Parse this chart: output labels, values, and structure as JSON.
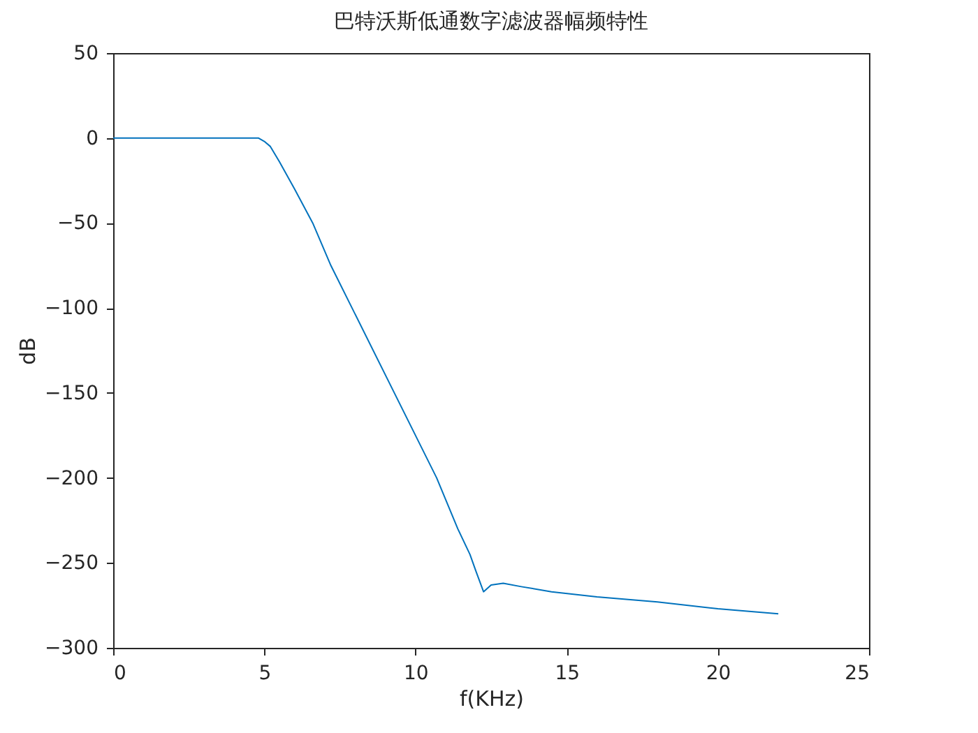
{
  "chart_data": {
    "type": "line",
    "title": "巴特沃斯低通数字滤波器幅频特性",
    "xlabel": "f(KHz)",
    "ylabel": "dB",
    "x": [
      0,
      4.5,
      4.8,
      5,
      5.2,
      5.5,
      6,
      6.6,
      7.2,
      7.9,
      9.3,
      10.7,
      11.4,
      11.8,
      12,
      12.25,
      12.5,
      12.9,
      13.5,
      14.5,
      16,
      18,
      20,
      22
    ],
    "series": [
      {
        "color": "#0072bd",
        "values": [
          0,
          0,
          0,
          -2,
          -5,
          -14,
          -30,
          -50,
          -75,
          -100,
          -150,
          -200,
          -230,
          -245,
          -255,
          -267,
          -263,
          -262,
          -264,
          -267,
          -270,
          -273,
          -277,
          -280
        ]
      }
    ],
    "xlim": [
      0,
      25
    ],
    "xticks": [
      0,
      5,
      10,
      15,
      20,
      25
    ],
    "ylim": [
      -300,
      50
    ],
    "yticks": [
      -300,
      -250,
      -200,
      -150,
      -100,
      -50,
      0,
      50
    ],
    "grid": false
  }
}
